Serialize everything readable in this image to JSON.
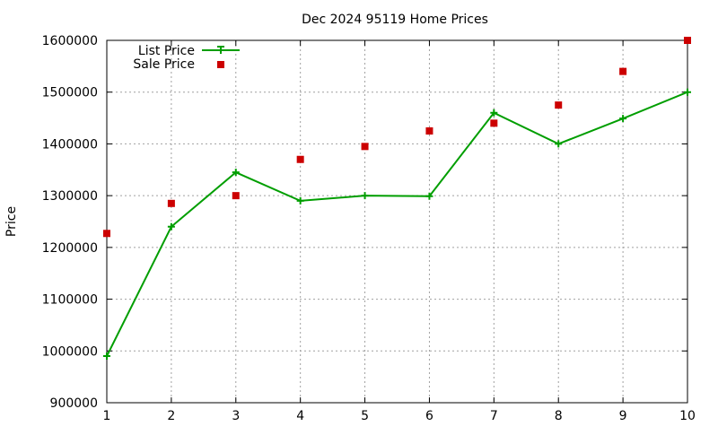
{
  "chart_data": {
    "type": "line",
    "title": "Dec 2024 95119 Home Prices",
    "xlabel": "",
    "ylabel": "Price",
    "x": [
      1,
      2,
      3,
      4,
      5,
      6,
      7,
      8,
      9,
      10
    ],
    "xlim": [
      1,
      10
    ],
    "ylim": [
      900000,
      1600000
    ],
    "x_ticks": [
      "1",
      "2",
      "3",
      "4",
      "5",
      "6",
      "7",
      "8",
      "9",
      "10"
    ],
    "y_ticks": [
      "900000",
      "1000000",
      "1100000",
      "1200000",
      "1300000",
      "1400000",
      "1500000",
      "1600000"
    ],
    "grid": true,
    "legend_position": "top-left",
    "series": [
      {
        "name": "List Price",
        "style": "line-with-plus-markers",
        "color": "#009e00",
        "values": [
          990000,
          1240000,
          1345000,
          1290000,
          1300000,
          1299000,
          1460000,
          1400000,
          1449000,
          1500000
        ]
      },
      {
        "name": "Sale Price",
        "style": "square-points",
        "color": "#cc0000",
        "values": [
          1227000,
          1285000,
          1300000,
          1370000,
          1395000,
          1425000,
          1440000,
          1475000,
          1540000,
          1600000
        ]
      }
    ]
  }
}
